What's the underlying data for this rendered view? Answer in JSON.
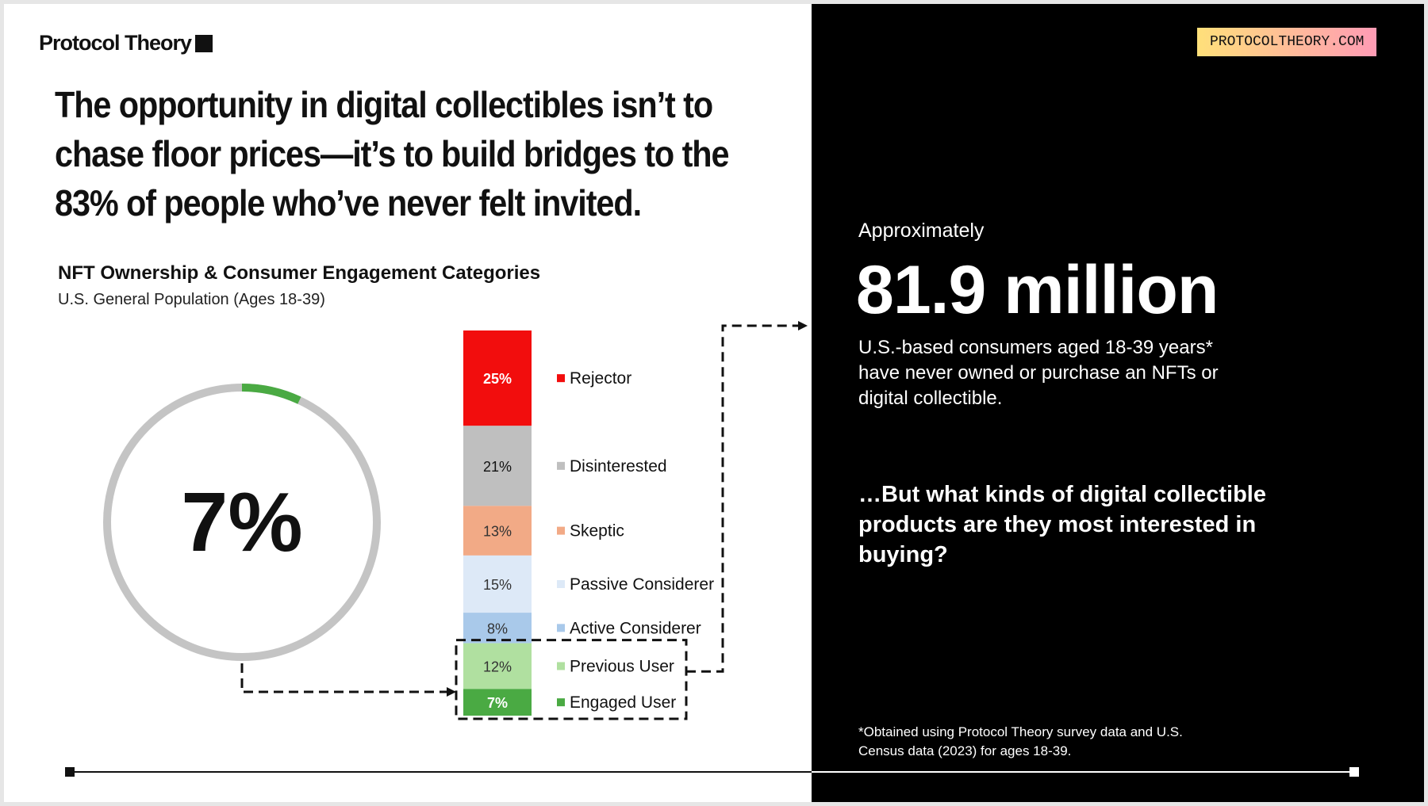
{
  "brand": {
    "logo_text": "Protocol Theory",
    "url_badge": "PROTOCOLTHEORY.COM",
    "badge_colors": [
      "#ffe07a",
      "#ff9bb5"
    ]
  },
  "headline": {
    "lines": [
      "The opportunity in digital collectibles isn’t to",
      "chase floor prices—it’s to build bridges to the",
      "83% of people who’ve never felt invited."
    ]
  },
  "chart_data": [
    {
      "type": "donut",
      "value": 7,
      "center_label": "7%",
      "colors": {
        "filled": "#4aaa43",
        "track": "#c4c4c4"
      }
    },
    {
      "type": "bar",
      "stacked": true,
      "title": "NFT Ownership & Consumer Engagement Categories",
      "subtitle": "U.S. General Population (Ages 18-39)",
      "series": [
        {
          "name": "Rejector",
          "value": 25,
          "label": "25%",
          "color": "#f20d0d",
          "text_color": "#ffffff"
        },
        {
          "name": "Disinterested",
          "value": 21,
          "label": "21%",
          "color": "#bfbfbf",
          "text_color": "#111111"
        },
        {
          "name": "Skeptic",
          "value": 13,
          "label": "13%",
          "color": "#f2aa86",
          "text_color": "#333333"
        },
        {
          "name": "Passive Considerer",
          "value": 15,
          "label": "15%",
          "color": "#dde9f7",
          "text_color": "#333333"
        },
        {
          "name": "Active Considerer",
          "value": 8,
          "label": "8%",
          "color": "#a9c9ea",
          "text_color": "#333333"
        },
        {
          "name": "Previous User",
          "value": 12,
          "label": "12%",
          "color": "#b0e0a0",
          "text_color": "#333333"
        },
        {
          "name": "Engaged User",
          "value": 7,
          "label": "7%",
          "color": "#4aaa43",
          "text_color": "#ffffff"
        }
      ]
    }
  ],
  "right_panel": {
    "approx_label": "Approximately",
    "big_number": "81.9 million",
    "description": "U.S.-based consumers aged 18-39 years* have never owned or purchase an NFTs or digital collectible.",
    "question": "…But what kinds of digital collectible products are they most interested in buying?",
    "footnote": "*Obtained using Protocol Theory survey data and U.S. Census data (2023) for ages 18-39."
  }
}
